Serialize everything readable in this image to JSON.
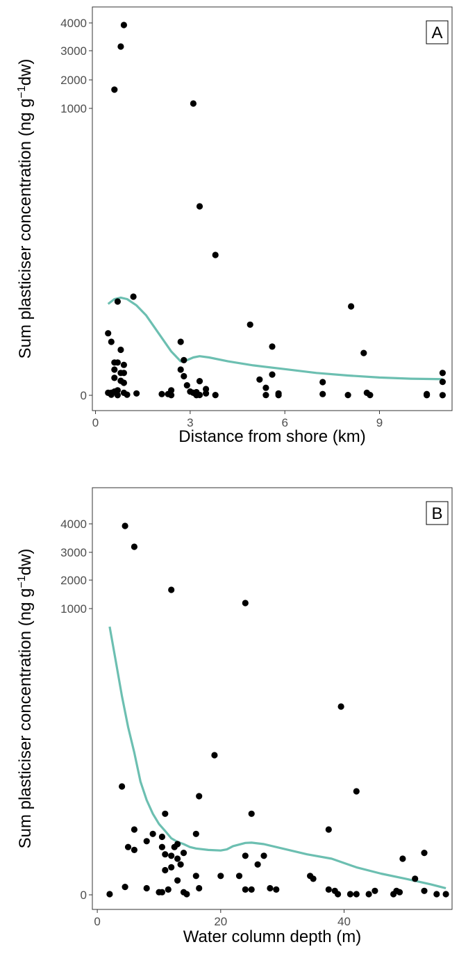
{
  "chart_data": [
    {
      "type": "scatter",
      "panel_label": "A",
      "xlabel": "Distance from shore (km)",
      "ylabel": {
        "main": "Sum plasticiser concentration (ng g",
        "sup": "−1",
        "end": "dw)"
      },
      "xlim": [
        -0.1,
        11.3
      ],
      "xticks": [
        0,
        3,
        6,
        9
      ],
      "yticks": [
        {
          "value": 0,
          "label": "0"
        },
        {
          "value": 1000,
          "label": "1000"
        },
        {
          "value": 2000,
          "label": "2000"
        },
        {
          "value": 3000,
          "label": "3000"
        },
        {
          "value": 4000,
          "label": "4000"
        }
      ],
      "y_scale": "square-root-like (piecewise through ticks)",
      "grid": false,
      "smooth_color": "#6cbfb1",
      "point_color": "#000000",
      "points": [
        [
          0.9,
          3900
        ],
        [
          0.8,
          3200
        ],
        [
          0.6,
          1700
        ],
        [
          3.1,
          1140
        ],
        [
          3.3,
          340
        ],
        [
          3.8,
          150
        ],
        [
          1.2,
          90
        ],
        [
          0.7,
          80
        ],
        [
          8.1,
          70
        ],
        [
          4.9,
          40
        ],
        [
          0.4,
          30
        ],
        [
          2.7,
          20
        ],
        [
          0.5,
          20
        ],
        [
          5.6,
          17
        ],
        [
          0.8,
          15
        ],
        [
          8.5,
          13
        ],
        [
          2.8,
          9
        ],
        [
          0.6,
          8
        ],
        [
          0.7,
          8
        ],
        [
          0.9,
          7
        ],
        [
          0.6,
          5
        ],
        [
          2.7,
          5
        ],
        [
          0.8,
          4
        ],
        [
          0.9,
          4
        ],
        [
          11.0,
          4
        ],
        [
          5.6,
          3.5
        ],
        [
          2.8,
          3
        ],
        [
          0.6,
          2.5
        ],
        [
          5.2,
          2
        ],
        [
          3.3,
          1.5
        ],
        [
          0.8,
          1.6
        ],
        [
          11.0,
          1.3
        ],
        [
          7.2,
          1.2
        ],
        [
          0.9,
          1
        ],
        [
          2.9,
          0.8
        ],
        [
          5.4,
          0.6
        ],
        [
          3.5,
          0.5
        ],
        [
          0.7,
          0.4
        ],
        [
          2.4,
          0.4
        ],
        [
          3.0,
          0.3
        ],
        [
          0.6,
          0.3
        ],
        [
          3.2,
          0.25
        ],
        [
          8.6,
          0.2
        ],
        [
          0.4,
          0.2
        ],
        [
          0.5,
          0.2
        ],
        [
          1.3,
          0.15
        ],
        [
          0.9,
          0.2
        ],
        [
          5.8,
          0.15
        ],
        [
          3.1,
          0.2
        ],
        [
          3.5,
          0.15
        ],
        [
          2.1,
          0.1
        ],
        [
          2.3,
          0.1
        ],
        [
          7.2,
          0.1
        ],
        [
          10.5,
          0.1
        ],
        [
          0.5,
          0.05
        ],
        [
          1.0,
          0.05
        ],
        [
          3.3,
          0.03
        ],
        [
          3.8,
          0.02
        ],
        [
          5.4,
          0.02
        ],
        [
          8.0,
          0.02
        ],
        [
          8.7,
          0.02
        ],
        [
          11.0,
          0.01
        ],
        [
          10.5,
          0.01
        ],
        [
          2.4,
          0.01
        ],
        [
          5.8,
          0.01
        ],
        [
          0.7,
          0.01
        ],
        [
          3.2,
          0.01
        ]
      ],
      "smooth": [
        [
          0.4,
          75
        ],
        [
          0.6,
          85
        ],
        [
          0.8,
          88
        ],
        [
          1.0,
          85
        ],
        [
          1.3,
          72
        ],
        [
          1.6,
          52
        ],
        [
          2.0,
          30
        ],
        [
          2.4,
          14
        ],
        [
          2.7,
          8.5
        ],
        [
          2.9,
          9.0
        ],
        [
          3.1,
          10.2
        ],
        [
          3.3,
          11.0
        ],
        [
          3.6,
          10.2
        ],
        [
          4.2,
          8.5
        ],
        [
          5.0,
          6.8
        ],
        [
          6.0,
          5.2
        ],
        [
          7.0,
          4.0
        ],
        [
          8.0,
          3.2
        ],
        [
          9.0,
          2.6
        ],
        [
          10.0,
          2.25
        ],
        [
          11.0,
          2.1
        ]
      ]
    },
    {
      "type": "scatter",
      "panel_label": "B",
      "xlabel": "Water column depth (m)",
      "ylabel": {
        "main": "Sum plasticiser concentration (ng g",
        "sup": "−1",
        "end": "dw)"
      },
      "xlim": [
        -0.8,
        57.5
      ],
      "xticks": [
        0,
        20,
        40
      ],
      "yticks": [
        {
          "value": 0,
          "label": "0"
        },
        {
          "value": 1000,
          "label": "1000"
        },
        {
          "value": 2000,
          "label": "2000"
        },
        {
          "value": 3000,
          "label": "3000"
        },
        {
          "value": 4000,
          "label": "4000"
        }
      ],
      "y_scale": "square-root-like (piecewise through ticks)",
      "grid": false,
      "smooth_color": "#6cbfb1",
      "point_color": "#000000",
      "points": [
        [
          4.5,
          3900
        ],
        [
          6,
          3200
        ],
        [
          12,
          1700
        ],
        [
          24,
          1140
        ],
        [
          39.5,
          340
        ],
        [
          19,
          150
        ],
        [
          4,
          90
        ],
        [
          42,
          80
        ],
        [
          16.5,
          70
        ],
        [
          11,
          40
        ],
        [
          25,
          40
        ],
        [
          6,
          20
        ],
        [
          9,
          17
        ],
        [
          16,
          17
        ],
        [
          10.5,
          15
        ],
        [
          37.5,
          20
        ],
        [
          8,
          12
        ],
        [
          5,
          9
        ],
        [
          6,
          8
        ],
        [
          13,
          10
        ],
        [
          12.5,
          9
        ],
        [
          10.5,
          9
        ],
        [
          14,
          7
        ],
        [
          11,
          6.5
        ],
        [
          24,
          6
        ],
        [
          12,
          6
        ],
        [
          13,
          5
        ],
        [
          49.5,
          5
        ],
        [
          53,
          7
        ],
        [
          26,
          4
        ],
        [
          13.5,
          4
        ],
        [
          12,
          3.5
        ],
        [
          11,
          3
        ],
        [
          27,
          6
        ],
        [
          34.5,
          2
        ],
        [
          16,
          2
        ],
        [
          23,
          2
        ],
        [
          20,
          2
        ],
        [
          35,
          1.5
        ],
        [
          51.5,
          1.5
        ],
        [
          13,
          1.2
        ],
        [
          4.5,
          0.6
        ],
        [
          8,
          0.5
        ],
        [
          16.5,
          0.5
        ],
        [
          24,
          0.4
        ],
        [
          25,
          0.4
        ],
        [
          11.5,
          0.4
        ],
        [
          28,
          0.5
        ],
        [
          29,
          0.4
        ],
        [
          37.5,
          0.4
        ],
        [
          38.5,
          0.3
        ],
        [
          45,
          0.3
        ],
        [
          48.5,
          0.3
        ],
        [
          49,
          0.2
        ],
        [
          53,
          0.3
        ],
        [
          10,
          0.2
        ],
        [
          10.5,
          0.2
        ],
        [
          14,
          0.2
        ],
        [
          2,
          0.05
        ],
        [
          14.5,
          0.05
        ],
        [
          39,
          0.05
        ],
        [
          41,
          0.05
        ],
        [
          42,
          0.05
        ],
        [
          44,
          0.05
        ],
        [
          48,
          0.05
        ],
        [
          55,
          0.05
        ],
        [
          56.5,
          0.05
        ]
      ],
      "smooth": [
        [
          2,
          800
        ],
        [
          3,
          600
        ],
        [
          4,
          400
        ],
        [
          5,
          260
        ],
        [
          6,
          160
        ],
        [
          7,
          100
        ],
        [
          8,
          62
        ],
        [
          9,
          40
        ],
        [
          10,
          27
        ],
        [
          11,
          19
        ],
        [
          12,
          14
        ],
        [
          13,
          11.5
        ],
        [
          14,
          10
        ],
        [
          15,
          9
        ],
        [
          16,
          8.5
        ],
        [
          18,
          8
        ],
        [
          20,
          7.8
        ],
        [
          21,
          8.2
        ],
        [
          22,
          9.3
        ],
        [
          24,
          10.8
        ],
        [
          25,
          11.0
        ],
        [
          27,
          10.0
        ],
        [
          30,
          8.5
        ],
        [
          34,
          6.5
        ],
        [
          38,
          5.0
        ],
        [
          42,
          3.5
        ],
        [
          46,
          2.4
        ],
        [
          50,
          1.5
        ],
        [
          54,
          0.8
        ],
        [
          56.5,
          0.5
        ]
      ]
    }
  ]
}
